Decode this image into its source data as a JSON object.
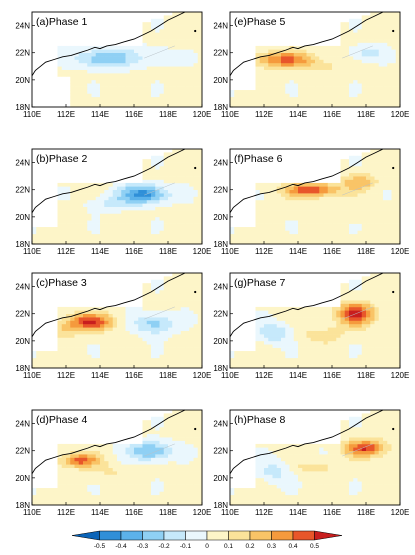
{
  "panels": [
    {
      "label": "(a)Phase 1",
      "pattern": "neg_band"
    },
    {
      "label": "(e)Phase 5",
      "pattern": "pos_coast_weak"
    },
    {
      "label": "(b)Phase 2",
      "pattern": "neg_strong"
    },
    {
      "label": "(f)Phase 6",
      "pattern": "pos_coast_strong"
    },
    {
      "label": "(c)Phase 3",
      "pattern": "pos_west_neg_east"
    },
    {
      "label": "(g)Phase 7",
      "pattern": "pos_east_strong"
    },
    {
      "label": "(d)Phase 4",
      "pattern": "neg_east"
    },
    {
      "label": "(h)Phase 8",
      "pattern": "pos_east_top"
    }
  ],
  "axes": {
    "x_ticks": [
      "110E",
      "112E",
      "114E",
      "116E",
      "118E",
      "120E"
    ],
    "y_ticks": [
      "24N",
      "22N",
      "20N",
      "18N"
    ]
  },
  "colorbar": {
    "ticks": [
      "-0.5",
      "-0.4",
      "-0.3",
      "-0.2",
      "-0.1",
      "0",
      "0.1",
      "0.2",
      "0.3",
      "0.4",
      "0.5"
    ],
    "colors": [
      "#0b64b8",
      "#2f8fd8",
      "#5cb2ea",
      "#8fd0f4",
      "#c6e9fb",
      "#eaf7fd",
      "#fdf5c8",
      "#fbe39a",
      "#f9c467",
      "#f59a3d",
      "#e8562a",
      "#c81e1e"
    ]
  }
}
